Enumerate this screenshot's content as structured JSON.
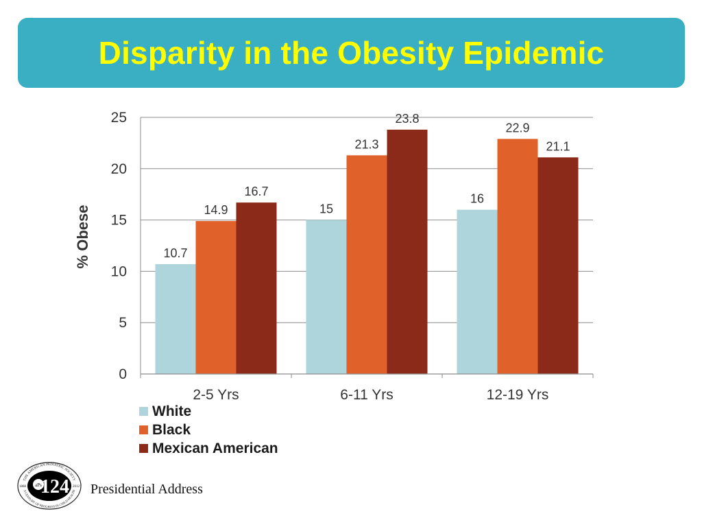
{
  "slide": {
    "title": "Disparity in the Obesity Epidemic",
    "footer": "Presidential Address",
    "colors": {
      "banner": "#3aafc4",
      "title": "#ffff00"
    }
  },
  "logo": {
    "number": "124",
    "initials": "aPs",
    "ring_top": "THE AMERICAN PEDIATRIC SOCIETY",
    "ring_bottom": "A CENTURY OF PROGRESS IN CHILD HEALTH",
    "year_left": "1888",
    "year_right": "2012"
  },
  "chart_data": {
    "type": "bar",
    "categories": [
      "2-5 Yrs",
      "6-11 Yrs",
      "12-19 Yrs"
    ],
    "series": [
      {
        "name": "White",
        "values": [
          10.7,
          15,
          16
        ],
        "labels": [
          "10.7",
          "15",
          "16"
        ],
        "color": "#aed4dc"
      },
      {
        "name": "Black",
        "values": [
          14.9,
          21.3,
          22.9
        ],
        "labels": [
          "14.9",
          "21.3",
          "22.9"
        ],
        "color": "#e0612a"
      },
      {
        "name": "Mexican American",
        "values": [
          16.7,
          23.8,
          21.1
        ],
        "labels": [
          "16.7",
          "23.8",
          "21.1"
        ],
        "color": "#8b2a18"
      }
    ],
    "ylabel": "% Obese",
    "xlabel": "",
    "ylim": [
      0,
      25
    ],
    "yticks": [
      "0",
      "5",
      "10",
      "15",
      "20",
      "25"
    ],
    "grid": true,
    "legend": "bottom-left"
  }
}
